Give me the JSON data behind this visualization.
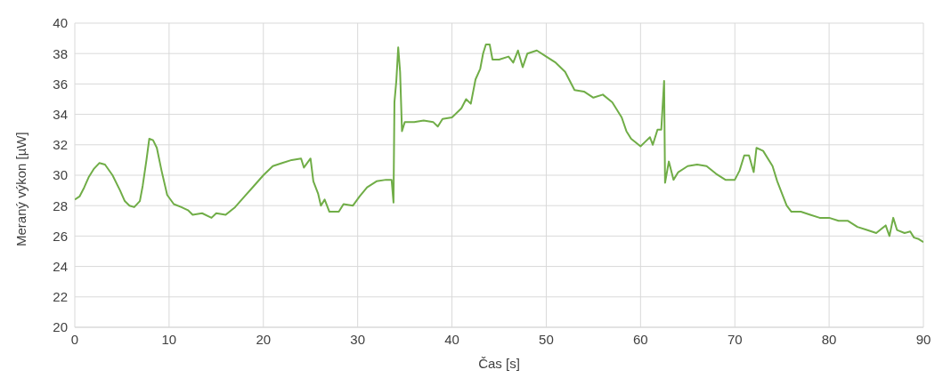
{
  "chart_data": {
    "type": "line",
    "xlabel": "Čas [s]",
    "ylabel": "Meraný výkon [µW]",
    "x": [
      0,
      0.5,
      1,
      1.5,
      2,
      2.6,
      3.2,
      4,
      4.8,
      5.3,
      5.8,
      6.3,
      6.9,
      7.2,
      7.6,
      7.9,
      8.3,
      8.7,
      9.2,
      9.8,
      10.5,
      11.3,
      12,
      12.5,
      13.5,
      14.5,
      15,
      16,
      17,
      18,
      19,
      20,
      21,
      22,
      23,
      24,
      24.3,
      25,
      25.3,
      25.8,
      26.1,
      26.5,
      27,
      28,
      28.5,
      29.5,
      30.2,
      31,
      32,
      33,
      33.6,
      33.8,
      33.9,
      34.1,
      34.3,
      34.5,
      34.7,
      35,
      36,
      37,
      38,
      38.5,
      39,
      40,
      41,
      41.5,
      42,
      42.5,
      43,
      43.3,
      43.6,
      44,
      44.3,
      45,
      46,
      46.5,
      47,
      47.5,
      48,
      49,
      50,
      51,
      52,
      52.5,
      53,
      54,
      55,
      56,
      57,
      58,
      58.5,
      59,
      60,
      60.5,
      61,
      61.3,
      61.8,
      62.2,
      62.5,
      62.6,
      63,
      63.5,
      64,
      65,
      66,
      67,
      68,
      69,
      70,
      70.5,
      71,
      71.5,
      72,
      72.3,
      73,
      74,
      74.5,
      75,
      75.5,
      76,
      77,
      78,
      79,
      80,
      81,
      82,
      83,
      84,
      85,
      86,
      86.4,
      86.8,
      87.2,
      88,
      88.6,
      89,
      89.5,
      90
    ],
    "series": [
      {
        "color": "#70ad47",
        "values": [
          28.4,
          28.6,
          29.2,
          29.9,
          30.4,
          30.8,
          30.7,
          30.0,
          29.0,
          28.3,
          28.0,
          27.9,
          28.3,
          29.3,
          31.0,
          32.4,
          32.3,
          31.8,
          30.3,
          28.7,
          28.1,
          27.9,
          27.7,
          27.4,
          27.5,
          27.2,
          27.5,
          27.4,
          27.9,
          28.6,
          29.3,
          30.0,
          30.6,
          30.8,
          31.0,
          31.1,
          30.5,
          31.1,
          29.6,
          28.8,
          28.0,
          28.4,
          27.6,
          27.6,
          28.1,
          28.0,
          28.6,
          29.2,
          29.6,
          29.7,
          29.7,
          28.2,
          34.8,
          36.2,
          38.4,
          36.8,
          32.9,
          33.5,
          33.5,
          33.6,
          33.5,
          33.2,
          33.7,
          33.8,
          34.4,
          35.0,
          34.7,
          36.3,
          37.0,
          38.0,
          38.6,
          38.6,
          37.6,
          37.6,
          37.8,
          37.4,
          38.2,
          37.1,
          38.0,
          38.2,
          37.8,
          37.4,
          36.8,
          36.2,
          35.6,
          35.5,
          35.1,
          35.3,
          34.8,
          33.8,
          32.9,
          32.4,
          31.9,
          32.2,
          32.5,
          32.0,
          33.0,
          33.0,
          36.2,
          29.5,
          30.9,
          29.7,
          30.2,
          30.6,
          30.7,
          30.6,
          30.1,
          29.7,
          29.7,
          30.3,
          31.3,
          31.3,
          30.2,
          31.8,
          31.6,
          30.6,
          29.6,
          28.8,
          28.0,
          27.6,
          27.6,
          27.4,
          27.2,
          27.2,
          27.0,
          27.0,
          26.6,
          26.4,
          26.2,
          26.7,
          26.0,
          27.2,
          26.4,
          26.2,
          26.3,
          25.9,
          25.8,
          25.6
        ]
      }
    ],
    "xlim": [
      0,
      90
    ],
    "xticks": [
      0,
      10,
      20,
      30,
      40,
      50,
      60,
      70,
      80,
      90
    ],
    "ylim": [
      20,
      40
    ],
    "yticks": [
      20,
      22,
      24,
      26,
      28,
      30,
      32,
      34,
      36,
      38,
      40
    ],
    "grid": true,
    "legend": false,
    "marker": "none",
    "line_style": "solid"
  }
}
